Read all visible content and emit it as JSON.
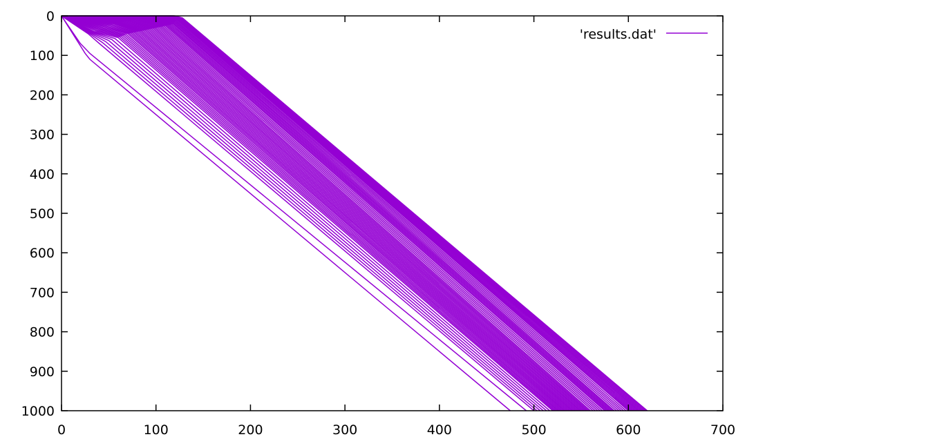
{
  "chart_data": {
    "type": "line",
    "title": "",
    "xlabel": "",
    "ylabel": "",
    "xlim": [
      0,
      700
    ],
    "ylim": [
      1000,
      0
    ],
    "y_axis_inverted": true,
    "grid": false,
    "legend_position": "top-right",
    "x_ticks": [
      "0",
      "100",
      "200",
      "300",
      "400",
      "500",
      "600",
      "700"
    ],
    "y_ticks": [
      "0",
      "100",
      "200",
      "300",
      "400",
      "500",
      "600",
      "700",
      "800",
      "900",
      "1000"
    ],
    "series": [
      {
        "name": "'results.dat'",
        "color": "#9400d3",
        "segments": [
          [
            [
              0,
              0
            ],
            [
              25,
              95
            ],
            [
              30,
              110
            ],
            [
              475,
              1000
            ]
          ],
          [
            [
              0,
              0
            ],
            [
              20,
              70
            ],
            [
              30,
              95
            ],
            [
              492,
              1000
            ]
          ],
          [
            [
              0,
              0
            ],
            [
              28,
              45
            ],
            [
              40,
              70
            ],
            [
              500,
              1000
            ]
          ],
          [
            [
              0,
              0
            ],
            [
              35,
              40
            ],
            [
              60,
              55
            ],
            [
              520,
              1000
            ]
          ],
          [
            [
              0,
              0
            ],
            [
              45,
              30
            ],
            [
              70,
              45
            ],
            [
              530,
              1000
            ]
          ],
          [
            [
              0,
              0
            ],
            [
              55,
              20
            ],
            [
              80,
              40
            ],
            [
              540,
              1000
            ]
          ],
          [
            [
              0,
              0
            ],
            [
              65,
              15
            ],
            [
              90,
              35
            ],
            [
              550,
              1000
            ]
          ],
          [
            [
              0,
              0
            ],
            [
              75,
              10
            ],
            [
              100,
              30
            ],
            [
              560,
              1000
            ]
          ],
          [
            [
              0,
              0
            ],
            [
              85,
              5
            ],
            [
              110,
              25
            ],
            [
              575,
              1000
            ]
          ],
          [
            [
              0,
              0
            ],
            [
              95,
              5
            ],
            [
              118,
              20
            ],
            [
              585,
              1000
            ]
          ],
          [
            [
              0,
              0
            ],
            [
              105,
              2
            ],
            [
              122,
              10
            ],
            [
              600,
              1000
            ]
          ],
          [
            [
              0,
              0
            ],
            [
              115,
              0
            ],
            [
              125,
              5
            ],
            [
              610,
              1000
            ]
          ],
          [
            [
              0,
              0
            ],
            [
              120,
              0
            ],
            [
              128,
              5
            ],
            [
              620,
              1000
            ]
          ]
        ]
      }
    ]
  }
}
